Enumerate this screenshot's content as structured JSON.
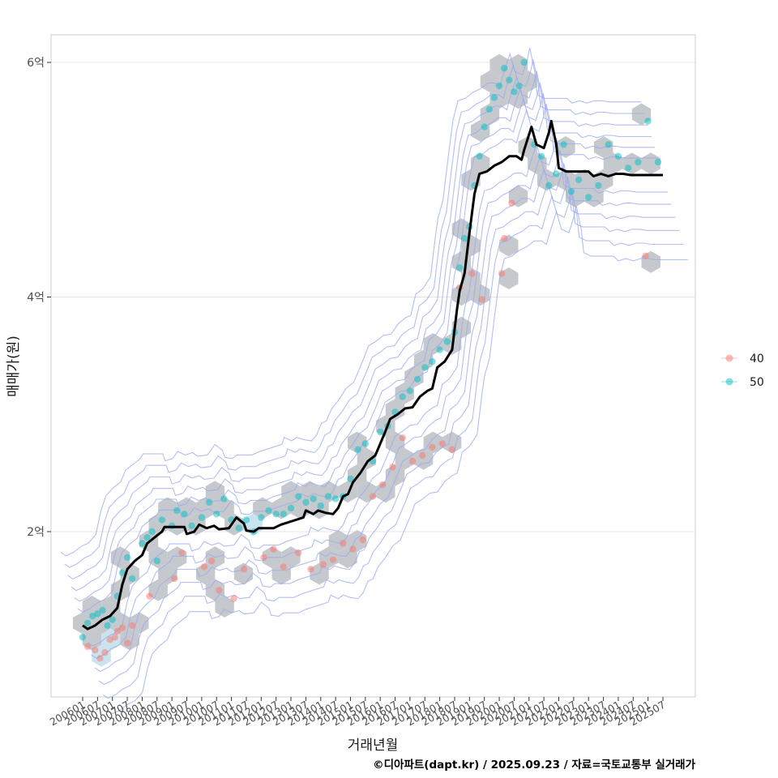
{
  "chart_data": {
    "type": "scatter",
    "title": "",
    "xlabel": "거래년월",
    "ylabel": "매매가(원)",
    "caption": "©디아파트(dapt.kr) / 2025.09.23 / 자료=국토교통부 실거래가",
    "x_range": [
      "2006-01",
      "2025-07"
    ],
    "ylim": [
      0.8,
      6.2
    ],
    "y_ticks": [
      {
        "value": 2,
        "label": "2억"
      },
      {
        "value": 4,
        "label": "4억"
      },
      {
        "value": 6,
        "label": "6억"
      }
    ],
    "x_ticks": [
      "200601",
      "200607",
      "200701",
      "200707",
      "200801",
      "200807",
      "200901",
      "200907",
      "201001",
      "201007",
      "201101",
      "201107",
      "201201",
      "201207",
      "201301",
      "201307",
      "201401",
      "201407",
      "201501",
      "201507",
      "201601",
      "201607",
      "201701",
      "201707",
      "201801",
      "201807",
      "201901",
      "201907",
      "202001",
      "202007",
      "202101",
      "202107",
      "202201",
      "202207",
      "202301",
      "202307",
      "202401",
      "202407",
      "202501",
      "202507"
    ],
    "legend": {
      "position": "right",
      "entries": [
        {
          "name": "40",
          "color": "#F8766D"
        },
        {
          "name": "50",
          "color": "#00BFC4"
        }
      ]
    },
    "trend_line": {
      "name": "median",
      "color": "#000000",
      "points": [
        [
          "2006-01",
          1.2
        ],
        [
          "2006-03",
          1.17
        ],
        [
          "2006-06",
          1.2
        ],
        [
          "2006-09",
          1.25
        ],
        [
          "2006-12",
          1.28
        ],
        [
          "2007-03",
          1.35
        ],
        [
          "2007-05",
          1.55
        ],
        [
          "2007-07",
          1.68
        ],
        [
          "2007-10",
          1.75
        ],
        [
          "2008-01",
          1.8
        ],
        [
          "2008-03",
          1.9
        ],
        [
          "2008-06",
          1.95
        ],
        [
          "2008-09",
          2.0
        ],
        [
          "2008-10",
          2.04
        ],
        [
          "2009-06",
          2.04
        ],
        [
          "2009-07",
          1.98
        ],
        [
          "2009-10",
          2.0
        ],
        [
          "2009-12",
          2.06
        ],
        [
          "2010-03",
          2.03
        ],
        [
          "2010-06",
          2.05
        ],
        [
          "2010-08",
          2.02
        ],
        [
          "2010-12",
          2.03
        ],
        [
          "2011-03",
          2.12
        ],
        [
          "2011-06",
          2.07
        ],
        [
          "2011-07",
          2.01
        ],
        [
          "2011-10",
          2.0
        ],
        [
          "2011-12",
          2.03
        ],
        [
          "2012-06",
          2.03
        ],
        [
          "2012-09",
          2.06
        ],
        [
          "2012-12",
          2.08
        ],
        [
          "2013-03",
          2.1
        ],
        [
          "2013-06",
          2.12
        ],
        [
          "2013-07",
          2.18
        ],
        [
          "2013-10",
          2.15
        ],
        [
          "2013-12",
          2.18
        ],
        [
          "2014-03",
          2.16
        ],
        [
          "2014-06",
          2.15
        ],
        [
          "2014-08",
          2.2
        ],
        [
          "2014-10",
          2.3
        ],
        [
          "2014-12",
          2.32
        ],
        [
          "2015-02",
          2.42
        ],
        [
          "2015-05",
          2.5
        ],
        [
          "2015-08",
          2.6
        ],
        [
          "2015-11",
          2.65
        ],
        [
          "2016-01",
          2.75
        ],
        [
          "2016-03",
          2.85
        ],
        [
          "2016-05",
          2.96
        ],
        [
          "2016-08",
          3.0
        ],
        [
          "2016-11",
          3.05
        ],
        [
          "2017-02",
          3.06
        ],
        [
          "2017-05",
          3.15
        ],
        [
          "2017-08",
          3.2
        ],
        [
          "2017-10",
          3.22
        ],
        [
          "2017-12",
          3.4
        ],
        [
          "2018-03",
          3.45
        ],
        [
          "2018-06",
          3.55
        ],
        [
          "2018-08",
          3.9
        ],
        [
          "2018-09",
          4.05
        ],
        [
          "2018-11",
          4.2
        ],
        [
          "2019-01",
          4.55
        ],
        [
          "2019-03",
          4.88
        ],
        [
          "2019-05",
          5.05
        ],
        [
          "2019-08",
          5.07
        ],
        [
          "2019-11",
          5.12
        ],
        [
          "2020-02",
          5.15
        ],
        [
          "2020-05",
          5.2
        ],
        [
          "2020-08",
          5.2
        ],
        [
          "2020-10",
          5.17
        ],
        [
          "2020-11",
          5.25
        ],
        [
          "2021-02",
          5.45
        ],
        [
          "2021-04",
          5.3
        ],
        [
          "2021-07",
          5.27
        ],
        [
          "2021-09",
          5.4
        ],
        [
          "2021-10",
          5.5
        ],
        [
          "2021-12",
          5.3
        ],
        [
          "2022-01",
          5.1
        ],
        [
          "2022-04",
          5.07
        ],
        [
          "2022-07",
          5.07
        ],
        [
          "2022-10",
          5.07
        ],
        [
          "2023-01",
          5.07
        ],
        [
          "2023-03",
          5.03
        ],
        [
          "2023-06",
          5.05
        ],
        [
          "2023-09",
          5.03
        ],
        [
          "2023-12",
          5.05
        ],
        [
          "2024-03",
          5.05
        ],
        [
          "2024-06",
          5.04
        ],
        [
          "2024-09",
          5.04
        ],
        [
          "2024-12",
          5.04
        ],
        [
          "2025-03",
          5.04
        ],
        [
          "2025-07",
          5.04
        ]
      ]
    },
    "series": [
      {
        "name": "40",
        "color": "#F8766D",
        "points": [
          [
            "2006-03",
            1.02
          ],
          [
            "2006-06",
            0.99
          ],
          [
            "2006-08",
            0.92
          ],
          [
            "2006-10",
            0.97
          ],
          [
            "2006-12",
            1.08
          ],
          [
            "2007-02",
            1.1
          ],
          [
            "2007-03",
            1.15
          ],
          [
            "2007-05",
            1.18
          ],
          [
            "2007-07",
            1.05
          ],
          [
            "2007-09",
            1.2
          ],
          [
            "2008-04",
            1.45
          ],
          [
            "2009-02",
            1.6
          ],
          [
            "2009-05",
            1.82
          ],
          [
            "2010-02",
            1.7
          ],
          [
            "2010-05",
            1.75
          ],
          [
            "2010-08",
            1.5
          ],
          [
            "2011-02",
            1.43
          ],
          [
            "2011-06",
            1.68
          ],
          [
            "2012-02",
            1.78
          ],
          [
            "2012-06",
            1.85
          ],
          [
            "2012-10",
            1.7
          ],
          [
            "2013-04",
            1.82
          ],
          [
            "2013-09",
            1.68
          ],
          [
            "2014-02",
            1.72
          ],
          [
            "2014-06",
            1.76
          ],
          [
            "2014-10",
            1.9
          ],
          [
            "2015-02",
            1.85
          ],
          [
            "2015-06",
            1.93
          ],
          [
            "2015-10",
            2.3
          ],
          [
            "2016-02",
            2.4
          ],
          [
            "2016-06",
            2.55
          ],
          [
            "2016-10",
            2.8
          ],
          [
            "2017-02",
            2.6
          ],
          [
            "2017-06",
            2.65
          ],
          [
            "2017-10",
            2.72
          ],
          [
            "2018-02",
            2.75
          ],
          [
            "2018-06",
            2.7
          ],
          [
            "2018-09",
            4.08
          ],
          [
            "2019-02",
            4.2
          ],
          [
            "2019-06",
            3.98
          ],
          [
            "2020-02",
            4.2
          ],
          [
            "2020-03",
            4.5
          ],
          [
            "2020-06",
            4.8
          ],
          [
            "2024-12",
            4.35
          ]
        ]
      },
      {
        "name": "50",
        "color": "#00BFC4",
        "points": [
          [
            "2006-01",
            1.1
          ],
          [
            "2006-03",
            1.22
          ],
          [
            "2006-05",
            1.28
          ],
          [
            "2006-07",
            1.3
          ],
          [
            "2006-09",
            1.33
          ],
          [
            "2006-11",
            1.2
          ],
          [
            "2007-01",
            1.25
          ],
          [
            "2007-03",
            1.45
          ],
          [
            "2007-05",
            1.65
          ],
          [
            "2007-07",
            1.78
          ],
          [
            "2007-09",
            1.6
          ],
          [
            "2008-01",
            1.9
          ],
          [
            "2008-03",
            1.95
          ],
          [
            "2008-05",
            2.0
          ],
          [
            "2008-07",
            1.75
          ],
          [
            "2008-09",
            2.1
          ],
          [
            "2009-01",
            2.05
          ],
          [
            "2009-03",
            2.18
          ],
          [
            "2009-06",
            2.15
          ],
          [
            "2009-09",
            2.05
          ],
          [
            "2010-01",
            2.12
          ],
          [
            "2010-04",
            2.25
          ],
          [
            "2010-07",
            2.15
          ],
          [
            "2010-10",
            2.28
          ],
          [
            "2011-01",
            2.1
          ],
          [
            "2011-04",
            2.03
          ],
          [
            "2011-07",
            2.1
          ],
          [
            "2011-10",
            2.0
          ],
          [
            "2012-01",
            2.12
          ],
          [
            "2012-04",
            2.18
          ],
          [
            "2012-07",
            2.15
          ],
          [
            "2012-10",
            2.15
          ],
          [
            "2013-01",
            2.2
          ],
          [
            "2013-04",
            2.3
          ],
          [
            "2013-07",
            2.25
          ],
          [
            "2013-10",
            2.28
          ],
          [
            "2014-01",
            2.22
          ],
          [
            "2014-04",
            2.3
          ],
          [
            "2014-07",
            2.28
          ],
          [
            "2014-10",
            2.3
          ],
          [
            "2015-01",
            2.45
          ],
          [
            "2015-04",
            2.7
          ],
          [
            "2015-07",
            2.75
          ],
          [
            "2015-10",
            2.6
          ],
          [
            "2016-01",
            2.85
          ],
          [
            "2016-04",
            2.9
          ],
          [
            "2016-07",
            3.02
          ],
          [
            "2016-10",
            3.15
          ],
          [
            "2017-01",
            3.2
          ],
          [
            "2017-04",
            3.3
          ],
          [
            "2017-07",
            3.4
          ],
          [
            "2017-10",
            3.45
          ],
          [
            "2018-01",
            3.55
          ],
          [
            "2018-04",
            3.62
          ],
          [
            "2018-07",
            3.7
          ],
          [
            "2018-09",
            4.25
          ],
          [
            "2018-11",
            4.5
          ],
          [
            "2019-01",
            4.6
          ],
          [
            "2019-03",
            4.95
          ],
          [
            "2019-05",
            5.2
          ],
          [
            "2019-07",
            5.45
          ],
          [
            "2019-09",
            5.6
          ],
          [
            "2019-11",
            5.7
          ],
          [
            "2020-01",
            5.8
          ],
          [
            "2020-03",
            5.95
          ],
          [
            "2020-05",
            5.85
          ],
          [
            "2020-07",
            5.75
          ],
          [
            "2020-09",
            5.8
          ],
          [
            "2020-11",
            6.0
          ],
          [
            "2021-03",
            5.3
          ],
          [
            "2021-06",
            5.2
          ],
          [
            "2021-09",
            4.95
          ],
          [
            "2021-12",
            5.05
          ],
          [
            "2022-03",
            5.3
          ],
          [
            "2022-06",
            4.9
          ],
          [
            "2022-09",
            5.0
          ],
          [
            "2023-01",
            4.85
          ],
          [
            "2023-05",
            4.95
          ],
          [
            "2023-09",
            5.3
          ],
          [
            "2024-01",
            5.2
          ],
          [
            "2024-05",
            5.1
          ],
          [
            "2024-09",
            5.15
          ],
          [
            "2025-01",
            5.5
          ],
          [
            "2025-05",
            5.15
          ]
        ]
      }
    ]
  }
}
